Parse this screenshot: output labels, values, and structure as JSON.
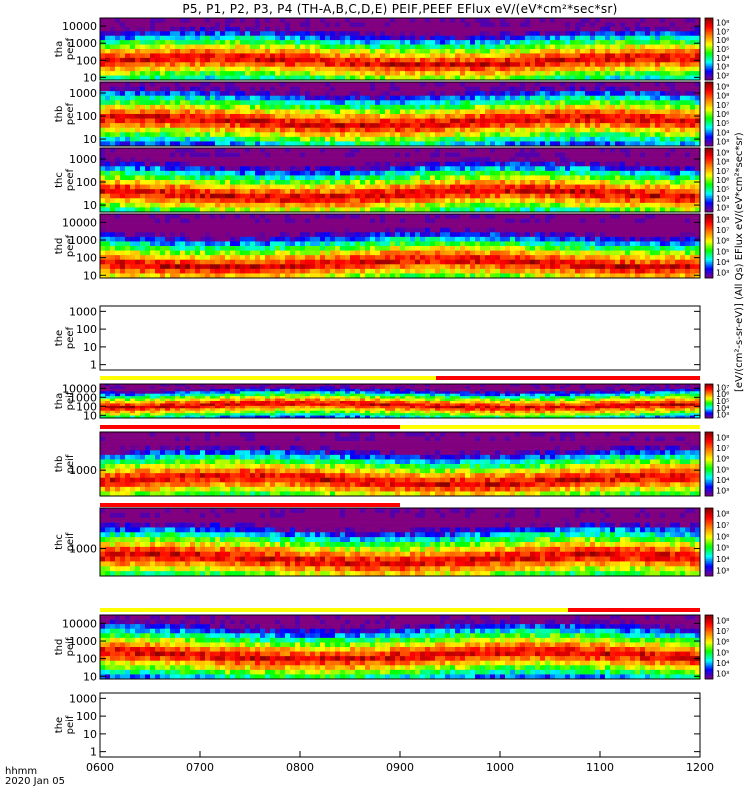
{
  "title": "P5, P1, P2, P3, P4 (TH-A,B,C,D,E) PEIF,PEEF EFlux eV/(eV*cm²*sec*sr)",
  "right_axis_label": "[eV/(cm²-s-sr-eV)] (All Qs) EFlux eV/(eV*cm²*sec*sr)",
  "bottom": {
    "axis_label_time": "hhmm",
    "axis_label_date": "2020 Jan 05"
  },
  "colors": {
    "flag_yellow": "#ffff00",
    "flag_red": "#ff0000",
    "colormap": [
      "#800080",
      "#0000ff",
      "#00ffff",
      "#00ff00",
      "#ffff00",
      "#ff8000",
      "#ff0000",
      "#800000"
    ]
  },
  "chart_data": [
    {
      "type": "heatmap",
      "ylabel": [
        "tha",
        "peef"
      ],
      "scale": "log",
      "ytick_labels": [
        "10",
        "100",
        "1000",
        "10000"
      ],
      "yrange": [
        7,
        30000
      ],
      "colorbar_labels": [
        "10²",
        "10³",
        "10⁴",
        "10⁵",
        "10⁶",
        "10⁷",
        "10⁸"
      ]
    },
    {
      "type": "heatmap",
      "ylabel": [
        "thb",
        "peef"
      ],
      "scale": "log",
      "ytick_labels": [
        "10",
        "100",
        "1000"
      ],
      "yrange": [
        5,
        3000
      ],
      "colorbar_labels": [
        "10³",
        "10⁴",
        "10⁵",
        "10⁶",
        "10⁷",
        "10⁸",
        "10⁹"
      ]
    },
    {
      "type": "heatmap",
      "ylabel": [
        "thc",
        "peef"
      ],
      "scale": "log",
      "ytick_labels": [
        "10",
        "100",
        "1000"
      ],
      "yrange": [
        5,
        3000
      ],
      "colorbar_labels": [
        "10³",
        "10⁴",
        "10⁵",
        "10⁶",
        "10⁷",
        "10⁸",
        "10⁹"
      ]
    },
    {
      "type": "heatmap",
      "ylabel": [
        "thd",
        "peef"
      ],
      "scale": "log",
      "ytick_labels": [
        "10",
        "100",
        "1000",
        "10000"
      ],
      "yrange": [
        7,
        30000
      ],
      "colorbar_labels": [
        "10³",
        "10⁴",
        "10⁵",
        "10⁶",
        "10⁷",
        "10⁸"
      ]
    },
    {
      "type": "heatmap",
      "ylabel": [
        "the",
        "peef"
      ],
      "scale": "log",
      "ytick_labels": [
        "1",
        "10",
        "100",
        "1000"
      ],
      "yrange": [
        0.5,
        2000
      ],
      "colorbar_labels": []
    },
    {
      "type": "heatmap",
      "ylabel": [
        "tha",
        "peif"
      ],
      "scale": "log",
      "ytick_labels": [
        "10",
        "100",
        "1000",
        "10000"
      ],
      "yrange": [
        5,
        30000
      ],
      "colorbar_labels": [
        "10³",
        "10⁴",
        "10⁵",
        "10⁶",
        "10⁷"
      ]
    },
    {
      "type": "heatmap",
      "ylabel": [
        "thb",
        "peif"
      ],
      "scale": "log",
      "ytick_labels": [
        "1000"
      ],
      "yrange": [
        100,
        30000
      ],
      "colorbar_labels": [
        "10³",
        "10⁴",
        "10⁵",
        "10⁶",
        "10⁷",
        "10⁸"
      ]
    },
    {
      "type": "heatmap",
      "ylabel": [
        "thc",
        "peif"
      ],
      "scale": "log",
      "ytick_labels": [
        "1000"
      ],
      "yrange": [
        100,
        30000
      ],
      "colorbar_labels": [
        "10³",
        "10⁴",
        "10⁵",
        "10⁶",
        "10⁷",
        "10⁸"
      ]
    },
    {
      "type": "heatmap",
      "ylabel": [
        "thd",
        "peif"
      ],
      "scale": "log",
      "ytick_labels": [
        "10",
        "100",
        "1000",
        "10000"
      ],
      "yrange": [
        7,
        30000
      ],
      "colorbar_labels": [
        "10³",
        "10⁴",
        "10⁵",
        "10⁶",
        "10⁷",
        "10⁸"
      ]
    },
    {
      "type": "heatmap",
      "ylabel": [
        "the",
        "peif"
      ],
      "scale": "log",
      "ytick_labels": [
        "1",
        "10",
        "100",
        "1000"
      ],
      "yrange": [
        0.5,
        2000
      ],
      "colorbar_labels": []
    }
  ],
  "x_axis": {
    "range": [
      "06:00",
      "12:00"
    ],
    "tick_labels": [
      "0600",
      "0700",
      "0800",
      "0900",
      "1000",
      "1100",
      "1200"
    ]
  }
}
